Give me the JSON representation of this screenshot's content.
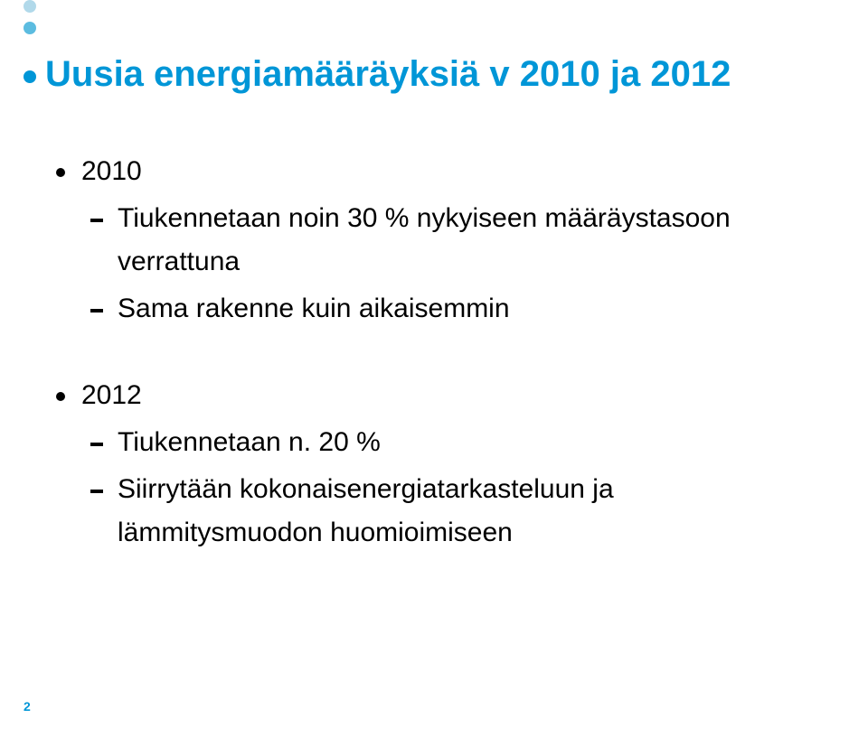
{
  "colors": {
    "title": "#0096d7",
    "decor_top": "#b1d9ea",
    "decor_mid": "#5cbce0",
    "decor_bot": "#0096d7",
    "body_text": "#000000",
    "bullet": "#000000",
    "page_num": "#0096d7",
    "background": "#ffffff"
  },
  "typography": {
    "title_fontsize": 40,
    "body_fontsize": 30,
    "page_fontsize": 14
  },
  "title": "Uusia energiamääräyksiä v 2010 ja 2012",
  "sections": [
    {
      "heading": "2010",
      "items": [
        "Tiukennetaan noin 30 % nykyiseen määräystasoon verrattuna",
        "Sama rakenne kuin aikaisemmin"
      ]
    },
    {
      "heading": "2012",
      "items": [
        "Tiukennetaan n. 20 %",
        "Siirrytään kokonaisenergiatarkasteluun ja lämmitysmuodon huomioimiseen"
      ]
    }
  ],
  "page_number": "2"
}
